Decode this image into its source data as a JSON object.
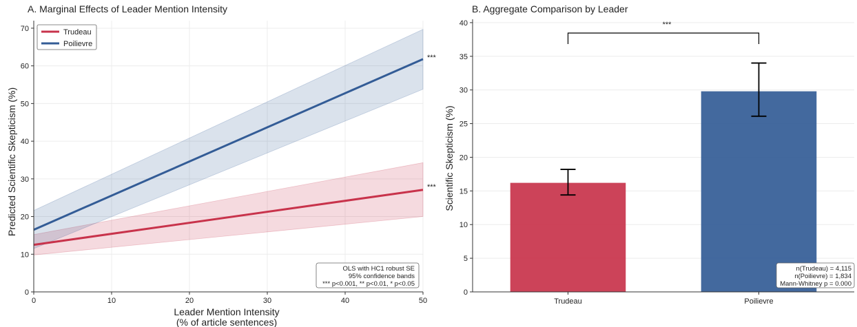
{
  "panel_a": {
    "title": "A. Marginal Effects of Leader Mention Intensity",
    "xlabel_line1": "Leader Mention Intensity",
    "xlabel_line2": "(% of article sentences)",
    "ylabel": "Predicted Scientific Skepticism (%)",
    "note_lines": [
      "OLS with HC1 robust SE",
      "95% confidence bands",
      "*** p<0.001, ** p<0.01, * p<0.05"
    ],
    "star_trudeau": "***",
    "star_poilievre": "***"
  },
  "panel_b": {
    "title": "B. Aggregate Comparison by Leader",
    "ylabel": "Scientific Skepticism (%)",
    "sig_label": "***",
    "note_lines": [
      "n(Trudeau) = 4,115",
      "n(Poilievre) = 1,834",
      "Mann-Whitney p = 0.000"
    ]
  },
  "colors": {
    "trudeau": "#c8334b",
    "poilievre": "#335c96",
    "grid": "#ececec",
    "axis": "#333333"
  },
  "chart_data": [
    {
      "type": "line",
      "title": "A. Marginal Effects of Leader Mention Intensity",
      "xlabel": "Leader Mention Intensity (% of article sentences)",
      "ylabel": "Predicted Scientific Skepticism (%)",
      "xlim": [
        0,
        50
      ],
      "ylim": [
        0,
        72
      ],
      "xticks": [
        0,
        10,
        20,
        30,
        40,
        50
      ],
      "yticks": [
        0,
        10,
        20,
        30,
        40,
        50,
        60,
        70
      ],
      "grid": true,
      "legend": "top-left",
      "series": [
        {
          "name": "Trudeau",
          "x": [
            0,
            50
          ],
          "y": [
            12.5,
            27.1
          ],
          "lower": [
            9.8,
            20.0
          ],
          "upper": [
            15.2,
            34.3
          ],
          "color": "#c8334b",
          "significance": "***"
        },
        {
          "name": "Poilievre",
          "x": [
            0,
            50
          ],
          "y": [
            16.5,
            61.8
          ],
          "lower": [
            11.5,
            53.8
          ],
          "upper": [
            21.6,
            69.7
          ],
          "color": "#335c96",
          "significance": "***"
        }
      ]
    },
    {
      "type": "bar",
      "title": "B. Aggregate Comparison by Leader",
      "ylabel": "Scientific Skepticism (%)",
      "categories": [
        "Trudeau",
        "Poilievre"
      ],
      "values": [
        16.2,
        29.8
      ],
      "err_low": [
        14.4,
        26.1
      ],
      "err_high": [
        18.2,
        34.0
      ],
      "colors": [
        "#c8334b",
        "#335c96"
      ],
      "ylim": [
        0,
        40.5
      ],
      "yticks": [
        0,
        5,
        10,
        15,
        20,
        25,
        30,
        35,
        40
      ],
      "grid": true,
      "significance": "***"
    }
  ]
}
